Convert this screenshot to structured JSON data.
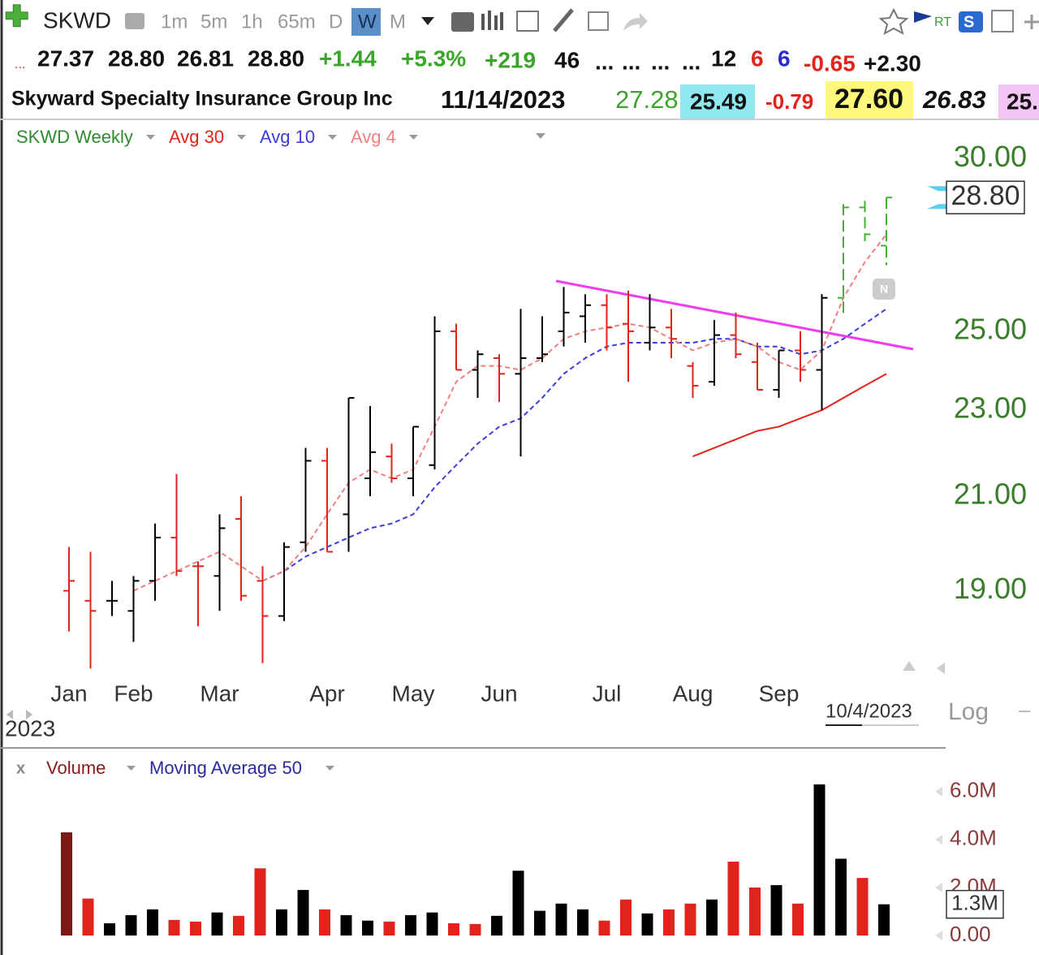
{
  "toolbar": {
    "symbol": "SKWD",
    "intervals": [
      "1m",
      "5m",
      "1h",
      "65m",
      "D",
      "W",
      "M"
    ],
    "rt": "RT",
    "badge": "S"
  },
  "header": {
    "quote": [
      "...",
      "27.37",
      "28.80",
      "26.81",
      "28.80",
      "+1.44",
      "+5.3%",
      "+219",
      "46",
      "...",
      "...",
      "...",
      "...",
      "12",
      "6",
      "6",
      "-0.65",
      "+2.30"
    ],
    "name": "Skyward Specialty Insurance Group Inc",
    "date": "11/14/2023",
    "fields": [
      "27.28",
      "25.49",
      "-0.79",
      "27.60",
      "26.83",
      "25."
    ]
  },
  "chart_data": [
    {
      "type": "ohlc",
      "name": "SKWD Weekly",
      "name_color": "#2f8a2f",
      "categories": [
        "Jan",
        null,
        null,
        "Feb",
        null,
        null,
        null,
        "Mar",
        null,
        null,
        null,
        null,
        "Apr",
        null,
        null,
        null,
        "May",
        null,
        null,
        null,
        "Jun",
        null,
        null,
        null,
        null,
        "Jul",
        null,
        null,
        null,
        "Aug",
        null,
        null,
        null,
        "Sep",
        null,
        null,
        null,
        null,
        null
      ],
      "open": [
        19.0,
        18.8,
        18.8,
        18.6,
        19.2,
        20.1,
        19.5,
        19.3,
        20.5,
        19.2,
        18.5,
        20.0,
        21.8,
        20.6,
        21.4,
        21.9,
        21.4,
        21.7,
        25.0,
        24.0,
        24.3,
        23.9,
        24.3,
        25.0,
        25.4,
        25.7,
        25.2,
        24.7,
        25.1,
        24.1,
        23.7,
        24.9,
        24.2,
        23.5,
        24.5,
        24.0,
        25.9,
        28.5,
        27.37
      ],
      "high": [
        19.9,
        19.8,
        19.2,
        19.3,
        20.4,
        21.5,
        19.6,
        20.6,
        21.0,
        19.5,
        20.0,
        22.1,
        22.1,
        23.3,
        23.1,
        22.2,
        22.6,
        25.4,
        25.2,
        24.5,
        24.4,
        25.6,
        25.4,
        26.2,
        26.0,
        26.0,
        26.1,
        26.0,
        25.6,
        24.2,
        25.3,
        25.5,
        24.7,
        24.5,
        25.0,
        26.0,
        28.6,
        28.7,
        28.8
      ],
      "low": [
        18.2,
        17.5,
        18.5,
        18.0,
        18.8,
        19.3,
        18.3,
        18.6,
        18.8,
        17.6,
        18.4,
        19.8,
        19.8,
        19.8,
        21.0,
        21.3,
        21.0,
        21.6,
        24.0,
        23.3,
        23.2,
        21.9,
        24.2,
        24.6,
        24.7,
        24.5,
        23.7,
        24.5,
        24.3,
        23.3,
        23.6,
        24.3,
        23.5,
        23.3,
        23.7,
        23.0,
        25.4,
        27.5,
        26.81
      ],
      "close": [
        19.2,
        18.6,
        18.8,
        19.2,
        20.1,
        19.4,
        19.5,
        20.3,
        18.9,
        18.5,
        19.9,
        21.8,
        19.8,
        23.3,
        22.0,
        21.4,
        22.6,
        25.0,
        24.0,
        24.4,
        23.9,
        24.3,
        24.4,
        25.5,
        25.7,
        25.1,
        25.0,
        25.1,
        24.8,
        23.6,
        24.9,
        24.4,
        23.5,
        24.5,
        24.0,
        25.9,
        28.5,
        27.7,
        28.8
      ],
      "bar_colors": [
        "#e0241b",
        "#e0241b",
        "#000000",
        "#000000",
        "#000000",
        "#e0241b",
        "#e0241b",
        "#000000",
        "#e0241b",
        "#e0241b",
        "#000000",
        "#000000",
        "#e0241b",
        "#000000",
        "#000000",
        "#e0241b",
        "#000000",
        "#000000",
        "#e0241b",
        "#000000",
        "#e0241b",
        "#000000",
        "#000000",
        "#000000",
        "#000000",
        "#e0241b",
        "#e0241b",
        "#000000",
        "#e0241b",
        "#e0241b",
        "#000000",
        "#e0241b",
        "#e0241b",
        "#000000",
        "#e0241b",
        "#000000",
        "#45b035",
        "#45b035",
        "#45b035"
      ],
      "series": [
        {
          "name": "Avg 30",
          "color": "#e0241b",
          "style": "solid",
          "values": [
            null,
            null,
            null,
            null,
            null,
            null,
            null,
            null,
            null,
            null,
            null,
            null,
            null,
            null,
            null,
            null,
            null,
            null,
            null,
            null,
            null,
            null,
            null,
            null,
            null,
            null,
            null,
            null,
            null,
            21.9,
            22.1,
            22.3,
            22.5,
            22.6,
            22.8,
            23.0,
            23.3,
            23.6,
            23.9
          ]
        },
        {
          "name": "Avg 10",
          "color": "#3c3cdc",
          "style": "dashed",
          "values": [
            null,
            null,
            null,
            null,
            null,
            null,
            null,
            null,
            null,
            19.2,
            19.4,
            19.7,
            19.9,
            20.1,
            20.3,
            20.4,
            20.6,
            21.2,
            21.7,
            22.2,
            22.6,
            22.8,
            23.3,
            23.9,
            24.3,
            24.6,
            24.7,
            24.7,
            24.7,
            24.7,
            24.8,
            24.8,
            24.6,
            24.6,
            24.4,
            24.5,
            24.8,
            25.2,
            25.6
          ]
        },
        {
          "name": "Avg 4",
          "color": "#f08080",
          "style": "dashed",
          "values": [
            null,
            null,
            null,
            19.0,
            19.2,
            19.4,
            19.6,
            19.8,
            19.5,
            19.2,
            19.4,
            19.9,
            20.6,
            21.3,
            21.6,
            21.4,
            21.6,
            22.6,
            23.7,
            24.1,
            24.1,
            24.0,
            24.3,
            24.8,
            25.0,
            25.1,
            25.2,
            25.1,
            24.8,
            24.5,
            24.7,
            24.8,
            24.6,
            24.2,
            24.0,
            24.5,
            25.9,
            26.9,
            27.7
          ]
        }
      ],
      "log_scale": true,
      "log_label": "Log",
      "ylim": [
        17.25,
        31.2
      ],
      "yticks": [
        {
          "value": 19,
          "label": "19.00"
        },
        {
          "value": 21,
          "label": "21.00"
        },
        {
          "value": 23,
          "label": "23.00"
        },
        {
          "value": 25,
          "label": "25.00"
        },
        {
          "value": 30,
          "label": "30.00"
        }
      ],
      "grid": false,
      "last_label": "28.80",
      "year_label": "2023",
      "date_label": "10/4/2023"
    },
    {
      "type": "bar",
      "legend": [
        "Volume",
        "Moving Average 50"
      ],
      "close_label": "x",
      "values": [
        4300000,
        1540000,
        510000,
        850000,
        1090000,
        650000,
        580000,
        960000,
        820000,
        2800000,
        1090000,
        1900000,
        1090000,
        850000,
        620000,
        580000,
        850000,
        960000,
        510000,
        480000,
        820000,
        2700000,
        1030000,
        1330000,
        1090000,
        620000,
        1500000,
        920000,
        1090000,
        1330000,
        1500000,
        3080000,
        2000000,
        2100000,
        1330000,
        6300000,
        3200000,
        2400000,
        1300000
      ],
      "bar_colors": [
        "#7b1812",
        "#e0241b",
        "#000000",
        "#000000",
        "#000000",
        "#e0241b",
        "#e0241b",
        "#000000",
        "#e0241b",
        "#e0241b",
        "#000000",
        "#000000",
        "#e0241b",
        "#000000",
        "#000000",
        "#e0241b",
        "#000000",
        "#000000",
        "#e0241b",
        "#e0241b",
        "#000000",
        "#000000",
        "#000000",
        "#000000",
        "#000000",
        "#e0241b",
        "#e0241b",
        "#000000",
        "#e0241b",
        "#e0241b",
        "#000000",
        "#e0241b",
        "#e0241b",
        "#000000",
        "#e0241b",
        "#000000",
        "#000000",
        "#e0241b",
        "#000000"
      ],
      "ylim": [
        0,
        6500000
      ],
      "yticks": [
        {
          "value": 0,
          "label": "0.00"
        },
        {
          "value": 2000000,
          "label": "2.0M"
        },
        {
          "value": 4000000,
          "label": "4.0M"
        },
        {
          "value": 6000000,
          "label": "6.0M"
        }
      ],
      "grid": false,
      "last_label": "1.3M"
    }
  ]
}
